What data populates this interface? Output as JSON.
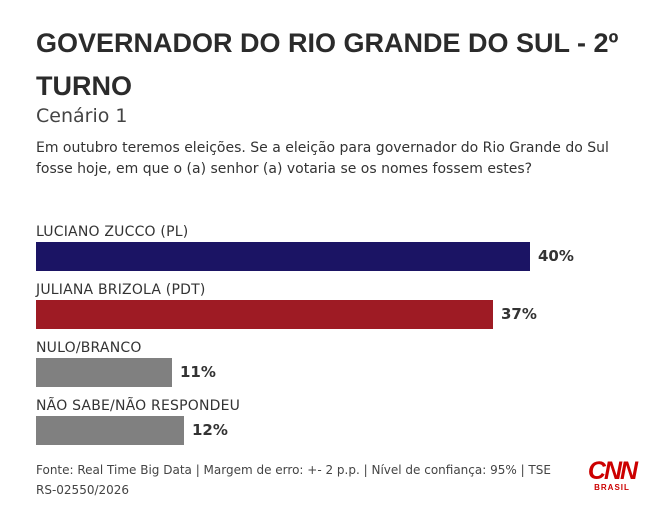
{
  "chart_data": {
    "type": "bar",
    "orientation": "horizontal",
    "title": "GOVERNADOR DO RIO GRANDE DO SUL - 2º TURNO",
    "subtitle": "Cenário 1",
    "question": "Em outubro teremos eleições. Se a eleição para governador do Rio Grande do Sul fosse hoje, em que o (a) senhor (a) votaria se os nomes fossem estes?",
    "categories": [
      "LUCIANO ZUCCO (PL)",
      "JULIANA BRIZOLA (PDT)",
      "NULO/BRANCO",
      "NÃO SABE/NÃO RESPONDEU"
    ],
    "values": [
      40,
      37,
      11,
      12
    ],
    "value_labels": [
      "40%",
      "37%",
      "11%",
      "12%"
    ],
    "colors": [
      "#1b1464",
      "#9e1b24",
      "#808080",
      "#808080"
    ],
    "xlim": [
      0,
      40
    ],
    "grid": false,
    "legend": "none"
  },
  "footer": {
    "source": "Fonte: Real Time Big Data | Margem de erro: +- 2 p.p. | Nível de confiança: 95% | TSE RS-02550/2026"
  },
  "logo": {
    "text": "CNN",
    "sub": "BRASIL",
    "color": "#cc0000"
  }
}
